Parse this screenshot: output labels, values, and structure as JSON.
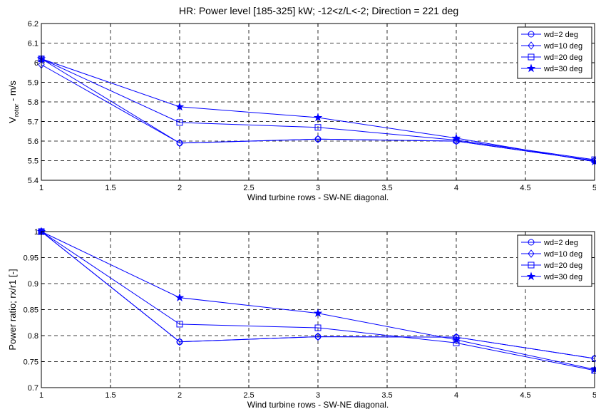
{
  "figure_title": "HR: Power level [185-325] kW; -12<z/L<-2; Direction = 221 deg",
  "colors": {
    "series": "#0000ff",
    "grid": "#000000",
    "axis": "#000000"
  },
  "chart_data": [
    {
      "type": "line",
      "title": "HR: Power level [185-325] kW; -12<z/L<-2; Direction = 221 deg",
      "xlabel": "Wind turbine rows - SW-NE diagonal.",
      "ylabel_main": "V",
      "ylabel_sub": "rotor",
      "ylabel_rest": " - m/s",
      "x": [
        1,
        2,
        3,
        4,
        5
      ],
      "xlim": [
        1,
        5
      ],
      "ylim": [
        5.4,
        6.2
      ],
      "xticks": [
        "1",
        "1.5",
        "2",
        "2.5",
        "3",
        "3.5",
        "4",
        "4.5",
        "5"
      ],
      "yticks": [
        "5.4",
        "5.5",
        "5.6",
        "5.7",
        "5.8",
        "5.9",
        "6",
        "6.1",
        "6.2"
      ],
      "grid": true,
      "legend_position": "top-right",
      "series": [
        {
          "name": "wd=2 deg",
          "marker": "circle",
          "values": [
            6.02,
            5.59,
            5.61,
            5.6,
            5.5
          ]
        },
        {
          "name": "wd=10 deg",
          "marker": "diamond",
          "values": [
            5.99,
            5.59,
            5.61,
            5.6,
            5.5
          ]
        },
        {
          "name": "wd=20 deg",
          "marker": "square",
          "values": [
            6.02,
            5.695,
            5.67,
            5.605,
            5.505
          ]
        },
        {
          "name": "wd=30 deg",
          "marker": "star",
          "values": [
            6.02,
            5.775,
            5.72,
            5.615,
            5.495
          ]
        }
      ]
    },
    {
      "type": "line",
      "title": "",
      "xlabel": "Wind turbine rows - SW-NE diagonal.",
      "ylabel_main": "Power ratio; rx/r1 [-]",
      "ylabel_sub": "",
      "ylabel_rest": "",
      "x": [
        1,
        2,
        3,
        4,
        5
      ],
      "xlim": [
        1,
        5
      ],
      "ylim": [
        0.7,
        1.0
      ],
      "xticks": [
        "1",
        "1.5",
        "2",
        "2.5",
        "3",
        "3.5",
        "4",
        "4.5",
        "5"
      ],
      "yticks": [
        "0.7",
        "0.75",
        "0.8",
        "0.85",
        "0.9",
        "0.95",
        "1"
      ],
      "grid": true,
      "legend_position": "top-right",
      "series": [
        {
          "name": "wd=2 deg",
          "marker": "circle",
          "values": [
            1.0,
            0.788,
            0.798,
            0.797,
            0.756
          ]
        },
        {
          "name": "wd=10 deg",
          "marker": "diamond",
          "values": [
            1.0,
            0.788,
            0.798,
            0.797,
            0.756
          ]
        },
        {
          "name": "wd=20 deg",
          "marker": "square",
          "values": [
            1.0,
            0.822,
            0.815,
            0.786,
            0.733
          ]
        },
        {
          "name": "wd=30 deg",
          "marker": "star",
          "values": [
            1.0,
            0.873,
            0.843,
            0.792,
            0.735
          ]
        }
      ]
    }
  ]
}
